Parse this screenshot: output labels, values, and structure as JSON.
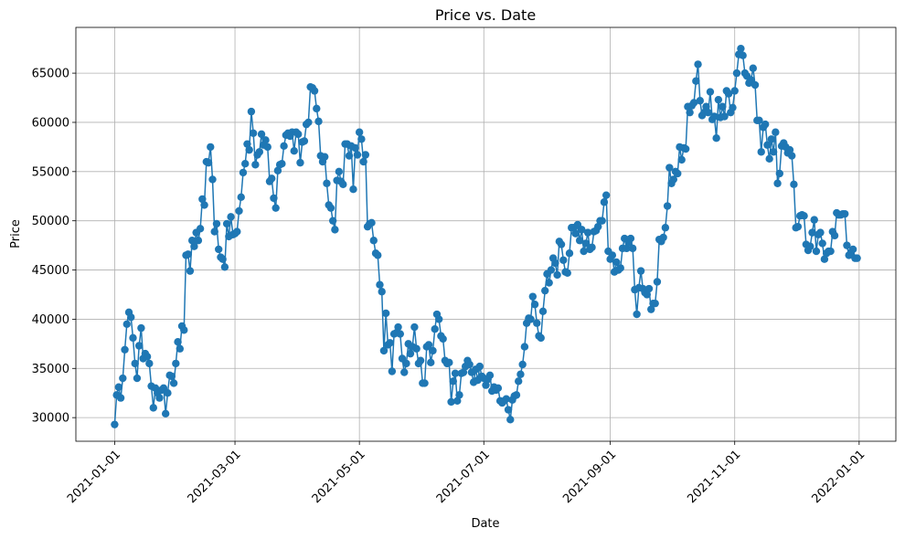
{
  "chart_data": {
    "type": "line",
    "title": "Price vs. Date",
    "x_label": "Date",
    "y_label": "Price",
    "color": "#1f77b4",
    "grid": true,
    "xlim": [
      "2020-12-13",
      "2022-01-19"
    ],
    "ylim": [
      27600,
      69650
    ],
    "xticks": [
      "2021-01-01",
      "2021-03-01",
      "2021-05-01",
      "2021-07-01",
      "2021-09-01",
      "2021-11-01",
      "2022-01-01"
    ],
    "yticks": [
      30000,
      35000,
      40000,
      45000,
      50000,
      55000,
      60000,
      65000
    ],
    "x": [
      "2021-01-01",
      "2021-01-02",
      "2021-01-03",
      "2021-01-04",
      "2021-01-05",
      "2021-01-06",
      "2021-01-07",
      "2021-01-08",
      "2021-01-09",
      "2021-01-10",
      "2021-01-11",
      "2021-01-12",
      "2021-01-13",
      "2021-01-14",
      "2021-01-15",
      "2021-01-16",
      "2021-01-17",
      "2021-01-18",
      "2021-01-19",
      "2021-01-20",
      "2021-01-21",
      "2021-01-22",
      "2021-01-23",
      "2021-01-24",
      "2021-01-25",
      "2021-01-26",
      "2021-01-27",
      "2021-01-28",
      "2021-01-29",
      "2021-01-30",
      "2021-01-31",
      "2021-02-01",
      "2021-02-02",
      "2021-02-03",
      "2021-02-04",
      "2021-02-05",
      "2021-02-06",
      "2021-02-07",
      "2021-02-08",
      "2021-02-09",
      "2021-02-10",
      "2021-02-11",
      "2021-02-12",
      "2021-02-13",
      "2021-02-14",
      "2021-02-15",
      "2021-02-16",
      "2021-02-17",
      "2021-02-18",
      "2021-02-19",
      "2021-02-20",
      "2021-02-21",
      "2021-02-22",
      "2021-02-23",
      "2021-02-24",
      "2021-02-25",
      "2021-02-26",
      "2021-02-27",
      "2021-02-28",
      "2021-03-01",
      "2021-03-02",
      "2021-03-03",
      "2021-03-04",
      "2021-03-05",
      "2021-03-06",
      "2021-03-07",
      "2021-03-08",
      "2021-03-09",
      "2021-03-10",
      "2021-03-11",
      "2021-03-12",
      "2021-03-13",
      "2021-03-14",
      "2021-03-15",
      "2021-03-16",
      "2021-03-17",
      "2021-03-18",
      "2021-03-19",
      "2021-03-20",
      "2021-03-21",
      "2021-03-22",
      "2021-03-23",
      "2021-03-24",
      "2021-03-25",
      "2021-03-26",
      "2021-03-27",
      "2021-03-28",
      "2021-03-29",
      "2021-03-30",
      "2021-03-31",
      "2021-04-01",
      "2021-04-02",
      "2021-04-03",
      "2021-04-04",
      "2021-04-05",
      "2021-04-06",
      "2021-04-07",
      "2021-04-08",
      "2021-04-09",
      "2021-04-10",
      "2021-04-11",
      "2021-04-12",
      "2021-04-13",
      "2021-04-14",
      "2021-04-15",
      "2021-04-16",
      "2021-04-17",
      "2021-04-18",
      "2021-04-19",
      "2021-04-20",
      "2021-04-21",
      "2021-04-22",
      "2021-04-23",
      "2021-04-24",
      "2021-04-25",
      "2021-04-26",
      "2021-04-27",
      "2021-04-28",
      "2021-04-29",
      "2021-04-30",
      "2021-05-01",
      "2021-05-02",
      "2021-05-03",
      "2021-05-04",
      "2021-05-05",
      "2021-05-06",
      "2021-05-07",
      "2021-05-08",
      "2021-05-09",
      "2021-05-10",
      "2021-05-11",
      "2021-05-12",
      "2021-05-13",
      "2021-05-14",
      "2021-05-15",
      "2021-05-16",
      "2021-05-17",
      "2021-05-18",
      "2021-05-19",
      "2021-05-20",
      "2021-05-21",
      "2021-05-22",
      "2021-05-23",
      "2021-05-24",
      "2021-05-25",
      "2021-05-26",
      "2021-05-27",
      "2021-05-28",
      "2021-05-29",
      "2021-05-30",
      "2021-05-31",
      "2021-06-01",
      "2021-06-02",
      "2021-06-03",
      "2021-06-04",
      "2021-06-05",
      "2021-06-06",
      "2021-06-07",
      "2021-06-08",
      "2021-06-09",
      "2021-06-10",
      "2021-06-11",
      "2021-06-12",
      "2021-06-13",
      "2021-06-14",
      "2021-06-15",
      "2021-06-16",
      "2021-06-17",
      "2021-06-18",
      "2021-06-19",
      "2021-06-20",
      "2021-06-21",
      "2021-06-22",
      "2021-06-23",
      "2021-06-24",
      "2021-06-25",
      "2021-06-26",
      "2021-06-27",
      "2021-06-28",
      "2021-06-29",
      "2021-06-30",
      "2021-07-01",
      "2021-07-02",
      "2021-07-03",
      "2021-07-04",
      "2021-07-05",
      "2021-07-06",
      "2021-07-07",
      "2021-07-08",
      "2021-07-09",
      "2021-07-10",
      "2021-07-11",
      "2021-07-12",
      "2021-07-13",
      "2021-07-14",
      "2021-07-15",
      "2021-07-16",
      "2021-07-17",
      "2021-07-18",
      "2021-07-19",
      "2021-07-20",
      "2021-07-21",
      "2021-07-22",
      "2021-07-23",
      "2021-07-24",
      "2021-07-25",
      "2021-07-26",
      "2021-07-27",
      "2021-07-28",
      "2021-07-29",
      "2021-07-30",
      "2021-07-31",
      "2021-08-01",
      "2021-08-02",
      "2021-08-03",
      "2021-08-04",
      "2021-08-05",
      "2021-08-06",
      "2021-08-07",
      "2021-08-08",
      "2021-08-09",
      "2021-08-10",
      "2021-08-11",
      "2021-08-12",
      "2021-08-13",
      "2021-08-14",
      "2021-08-15",
      "2021-08-16",
      "2021-08-17",
      "2021-08-18",
      "2021-08-19",
      "2021-08-20",
      "2021-08-21",
      "2021-08-22",
      "2021-08-23",
      "2021-08-24",
      "2021-08-25",
      "2021-08-26",
      "2021-08-27",
      "2021-08-28",
      "2021-08-29",
      "2021-08-30",
      "2021-08-31",
      "2021-09-01",
      "2021-09-02",
      "2021-09-03",
      "2021-09-04",
      "2021-09-05",
      "2021-09-06",
      "2021-09-07",
      "2021-09-08",
      "2021-09-09",
      "2021-09-10",
      "2021-09-11",
      "2021-09-12",
      "2021-09-13",
      "2021-09-14",
      "2021-09-15",
      "2021-09-16",
      "2021-09-17",
      "2021-09-18",
      "2021-09-19",
      "2021-09-20",
      "2021-09-21",
      "2021-09-22",
      "2021-09-23",
      "2021-09-24",
      "2021-09-25",
      "2021-09-26",
      "2021-09-27",
      "2021-09-28",
      "2021-09-29",
      "2021-09-30",
      "2021-10-01",
      "2021-10-02",
      "2021-10-03",
      "2021-10-04",
      "2021-10-05",
      "2021-10-06",
      "2021-10-07",
      "2021-10-08",
      "2021-10-09",
      "2021-10-10",
      "2021-10-11",
      "2021-10-12",
      "2021-10-13",
      "2021-10-14",
      "2021-10-15",
      "2021-10-16",
      "2021-10-17",
      "2021-10-18",
      "2021-10-19",
      "2021-10-20",
      "2021-10-21",
      "2021-10-22",
      "2021-10-23",
      "2021-10-24",
      "2021-10-25",
      "2021-10-26",
      "2021-10-27",
      "2021-10-28",
      "2021-10-29",
      "2021-10-30",
      "2021-10-31",
      "2021-11-01",
      "2021-11-02",
      "2021-11-03",
      "2021-11-04",
      "2021-11-05",
      "2021-11-06",
      "2021-11-07",
      "2021-11-08",
      "2021-11-09",
      "2021-11-10",
      "2021-11-11",
      "2021-11-12",
      "2021-11-13",
      "2021-11-14",
      "2021-11-15",
      "2021-11-16",
      "2021-11-17",
      "2021-11-18",
      "2021-11-19",
      "2021-11-20",
      "2021-11-21",
      "2021-11-22",
      "2021-11-23",
      "2021-11-24",
      "2021-11-25",
      "2021-11-26",
      "2021-11-27",
      "2021-11-28",
      "2021-11-29",
      "2021-11-30",
      "2021-12-01",
      "2021-12-02",
      "2021-12-03",
      "2021-12-04",
      "2021-12-05",
      "2021-12-06",
      "2021-12-07",
      "2021-12-08",
      "2021-12-09",
      "2021-12-10",
      "2021-12-11",
      "2021-12-12",
      "2021-12-13",
      "2021-12-14",
      "2021-12-15",
      "2021-12-16",
      "2021-12-17",
      "2021-12-18",
      "2021-12-19",
      "2021-12-20",
      "2021-12-21",
      "2021-12-22",
      "2021-12-23",
      "2021-12-24",
      "2021-12-25",
      "2021-12-26",
      "2021-12-27",
      "2021-12-28",
      "2021-12-29",
      "2021-12-30",
      "2021-12-31"
    ],
    "values": [
      29300,
      32300,
      33100,
      32000,
      34000,
      36900,
      39500,
      40700,
      40200,
      38100,
      35500,
      34000,
      37300,
      39100,
      36000,
      36500,
      36200,
      35500,
      33200,
      31000,
      33000,
      32500,
      32000,
      32800,
      33000,
      30400,
      32500,
      34300,
      34200,
      33500,
      35500,
      37700,
      37000,
      39300,
      38900,
      46500,
      46600,
      44900,
      48000,
      47400,
      48800,
      48000,
      49200,
      52200,
      51600,
      56000,
      55900,
      57500,
      54200,
      48900,
      49700,
      47100,
      46300,
      46100,
      45300,
      49700,
      48400,
      50400,
      48600,
      48700,
      48900,
      51000,
      52400,
      54900,
      55800,
      57800,
      57200,
      61100,
      58900,
      55700,
      56700,
      57000,
      58800,
      57700,
      58200,
      57500,
      54000,
      54300,
      52300,
      51300,
      55100,
      55700,
      55800,
      57600,
      58700,
      58900,
      58600,
      59000,
      57100,
      59000,
      58800,
      55900,
      58000,
      58100,
      59800,
      60000,
      63600,
      63500,
      63200,
      61400,
      60100,
      56600,
      56000,
      56500,
      53800,
      51600,
      51300,
      50000,
      49100,
      54100,
      55000,
      54000,
      53700,
      57800,
      57800,
      56600,
      57600,
      53200,
      57400,
      56700,
      59000,
      58300,
      56000,
      56700,
      49400,
      49700,
      49800,
      48000,
      46700,
      46500,
      43500,
      42800,
      36800,
      40600,
      37400,
      37600,
      34700,
      38500,
      38600,
      39200,
      38500,
      36000,
      34600,
      35500,
      37500,
      36500,
      37200,
      39200,
      37000,
      35500,
      35800,
      33500,
      33500,
      37200,
      37400,
      35600,
      36800,
      39000,
      40500,
      40000,
      38300,
      38000,
      35800,
      35500,
      35600,
      31600,
      33700,
      34500,
      31700,
      32300,
      34500,
      34600,
      35200,
      35800,
      35400,
      34600,
      33600,
      34900,
      33800,
      35200,
      34200,
      34000,
      33300,
      33900,
      34300,
      32700,
      33100,
      32800,
      33000,
      31700,
      31500,
      31700,
      31900,
      30800,
      29800,
      31800,
      32200,
      32300,
      33700,
      34400,
      35400,
      37200,
      39600,
      40100,
      40000,
      42300,
      41500,
      39600,
      38300,
      38100,
      40800,
      42900,
      44600,
      43700,
      45000,
      46200,
      45700,
      44500,
      47900,
      47600,
      46000,
      44800,
      44700,
      46700,
      49300,
      49300,
      48700,
      49600,
      48000,
      49100,
      46900,
      47700,
      48800,
      47100,
      47300,
      48900,
      49000,
      49400,
      50000,
      50000,
      51900,
      52600,
      46900,
      46100,
      46500,
      44800,
      45800,
      45000,
      45200,
      47200,
      48200,
      47200,
      47800,
      48200,
      47200,
      43000,
      40500,
      43200,
      44900,
      43100,
      42700,
      42500,
      43100,
      41000,
      41600,
      41600,
      43800,
      48100,
      47900,
      48300,
      49300,
      51500,
      55400,
      53800,
      54200,
      55000,
      54800,
      57500,
      56200,
      57400,
      57300,
      61600,
      61000,
      61700,
      62000,
      64200,
      65900,
      62200,
      60700,
      61000,
      61600,
      61000,
      63100,
      60300,
      60600,
      58400,
      62300,
      60500,
      61600,
      60600,
      63200,
      62900,
      61000,
      61500,
      63200,
      65000,
      66900,
      67500,
      66800,
      65000,
      64700,
      64000,
      64300,
      65500,
      63800,
      60200,
      60200,
      57000,
      59500,
      59800,
      57700,
      56300,
      58300,
      57000,
      59000,
      53800,
      54800,
      57600,
      57900,
      57500,
      56900,
      57200,
      56600,
      53700,
      49300,
      49400,
      50500,
      50600,
      50500,
      47600,
      47000,
      47400,
      48800,
      50100,
      46900,
      48600,
      48800,
      47700,
      46100,
      46700,
      46900,
      46900,
      48900,
      48500,
      50800,
      50600,
      50600,
      50700,
      50700,
      47500,
      46500,
      46800,
      47100,
      46200,
      46200
    ]
  }
}
